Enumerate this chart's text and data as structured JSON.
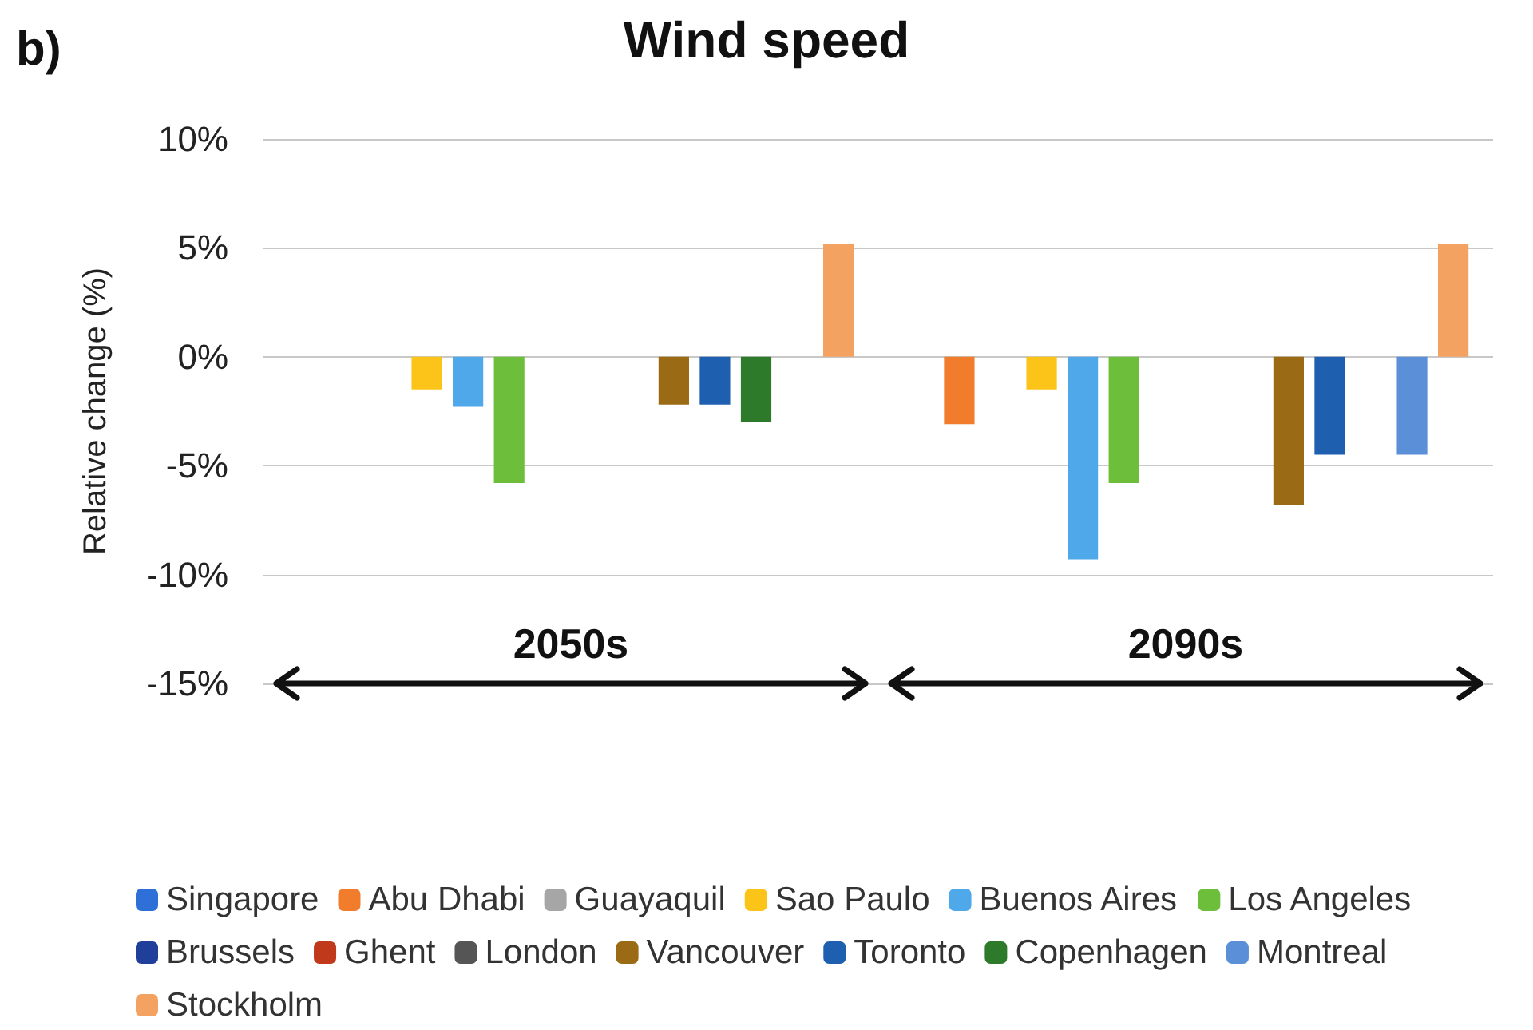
{
  "chart_data": {
    "type": "bar",
    "title": "Wind speed",
    "ylabel": "Relative change (%)",
    "annotations": [
      "b)"
    ],
    "categories": [
      "2050s",
      "2090s"
    ],
    "series": [
      {
        "name": "Singapore",
        "color": "#2e6fd8",
        "values": [
          null,
          null
        ]
      },
      {
        "name": "Abu Dhabi",
        "color": "#f07c2c",
        "values": [
          null,
          -3.1
        ]
      },
      {
        "name": "Guayaquil",
        "color": "#a6a6a6",
        "values": [
          null,
          null
        ]
      },
      {
        "name": "Sao Paulo",
        "color": "#fcc419",
        "values": [
          -1.5,
          -1.5
        ]
      },
      {
        "name": "Buenos Aires",
        "color": "#4fa8ea",
        "values": [
          -2.3,
          -9.3
        ]
      },
      {
        "name": "Los Angeles",
        "color": "#6dbf3b",
        "values": [
          -5.8,
          -5.8
        ]
      },
      {
        "name": "Brussels",
        "color": "#1f3f9a",
        "values": [
          null,
          null
        ]
      },
      {
        "name": "Ghent",
        "color": "#c0391b",
        "values": [
          null,
          null
        ]
      },
      {
        "name": "London",
        "color": "#555555",
        "values": [
          null,
          null
        ]
      },
      {
        "name": "Vancouver",
        "color": "#9a6a14",
        "values": [
          -2.2,
          -6.8
        ]
      },
      {
        "name": "Toronto",
        "color": "#1f5fb0",
        "values": [
          -2.2,
          -4.5
        ]
      },
      {
        "name": "Copenhagen",
        "color": "#2c7a2a",
        "values": [
          -3.0,
          null
        ]
      },
      {
        "name": "Montreal",
        "color": "#5b8fd8",
        "values": [
          null,
          -4.5
        ]
      },
      {
        "name": "Stockholm",
        "color": "#f4a261",
        "values": [
          5.2,
          5.2
        ]
      }
    ],
    "ylim": [
      -15,
      10
    ],
    "yticks": [
      {
        "value": -15,
        "label": "-15%"
      },
      {
        "value": -10,
        "label": "-10%"
      },
      {
        "value": -5,
        "label": "-5%"
      },
      {
        "value": 0,
        "label": "0%"
      },
      {
        "value": 5,
        "label": "5%"
      },
      {
        "value": 10,
        "label": "10%"
      }
    ],
    "grid": "y",
    "legend": "bottom"
  }
}
